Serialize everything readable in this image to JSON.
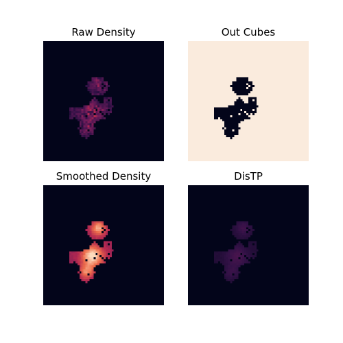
{
  "figure": {
    "panels": [
      {
        "title": "Raw Density",
        "style": "raw-density",
        "background": "#03051a"
      },
      {
        "title": "Out Cubes",
        "style": "binary-mask",
        "background": "#faebdd",
        "mask_color": "#03051a"
      },
      {
        "title": "Smoothed Density",
        "style": "smoothed-density",
        "background": "#03051a"
      },
      {
        "title": "DisTP",
        "style": "faint-density",
        "background": "#03051a"
      }
    ]
  }
}
